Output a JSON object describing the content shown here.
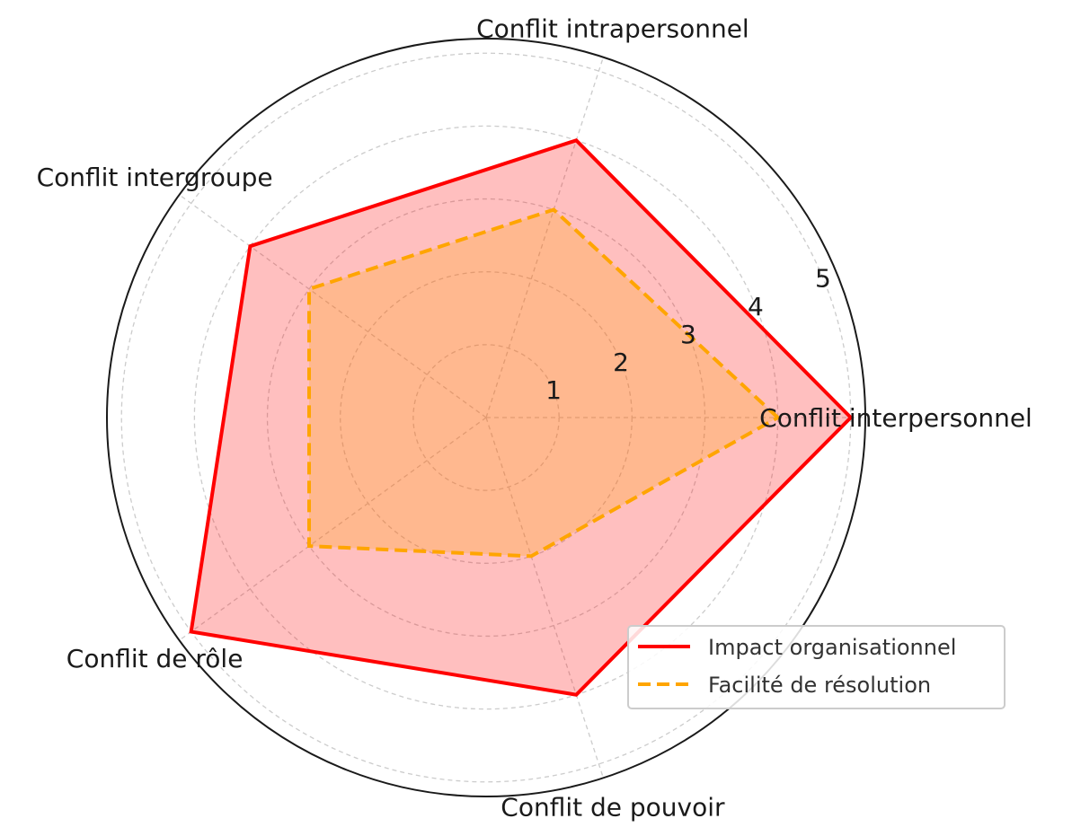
{
  "chart_data": {
    "type": "radar",
    "categories": [
      "Conflit interpersonnel",
      "Conflit intrapersonnel",
      "Conflit intergroupe",
      "Conflit de rôle",
      "Conflit de pouvoir"
    ],
    "series": [
      {
        "name": "Impact organisationnel",
        "values": [
          5.0,
          4.0,
          4.0,
          5.0,
          4.0
        ],
        "color": "#ff0000",
        "fill": "#ff0000",
        "dash": "solid"
      },
      {
        "name": "Facilité de résolution",
        "values": [
          4.0,
          3.0,
          3.0,
          3.0,
          2.0
        ],
        "color": "#ffa500",
        "fill": "#ffa500",
        "dash": "dashed"
      }
    ],
    "rticks": [
      1,
      2,
      3,
      4,
      5
    ],
    "rlim": [
      0,
      5.2
    ],
    "grid": true,
    "legend": "lower-right"
  }
}
